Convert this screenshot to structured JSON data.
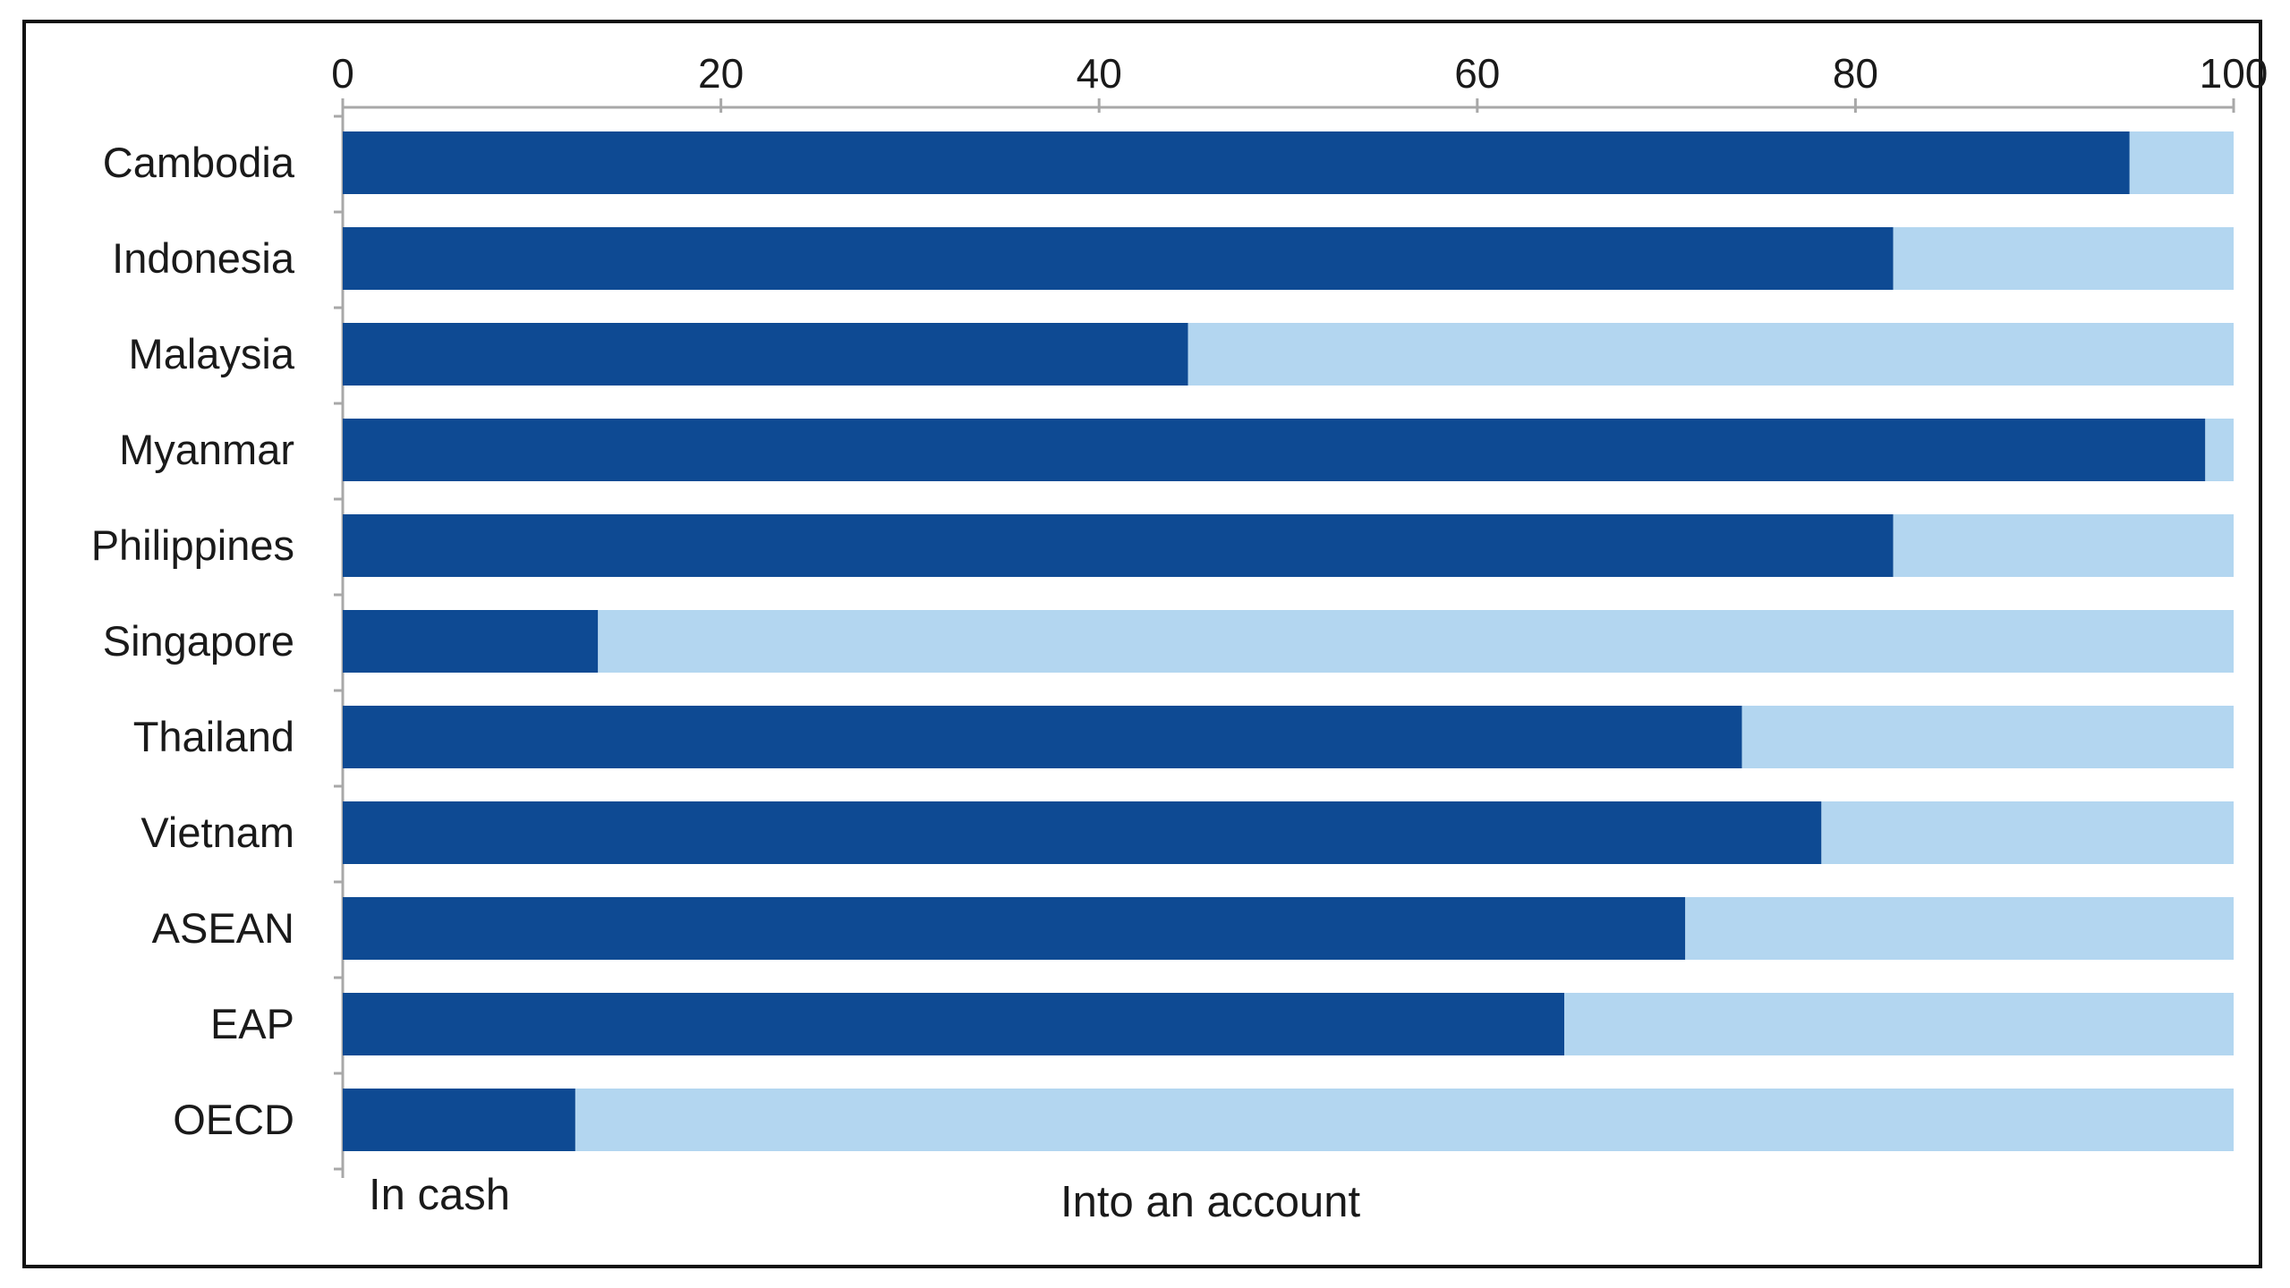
{
  "chart_data": {
    "type": "bar",
    "orientation": "horizontal",
    "stacked": true,
    "categories": [
      "Cambodia",
      "Indonesia",
      "Malaysia",
      "Myanmar",
      "Philippines",
      "Singapore",
      "Thailand",
      "Vietnam",
      "ASEAN",
      "EAP",
      "OECD"
    ],
    "series": [
      {
        "name": "In cash",
        "color": "#0e4a93",
        "values": [
          94.5,
          82,
          44.7,
          98.5,
          82,
          13.5,
          74,
          78.2,
          71,
          64.6,
          12.3
        ]
      },
      {
        "name": "Into an account",
        "color": "#b3d6f0",
        "values": [
          5.5,
          18,
          55.3,
          1.5,
          18,
          86.5,
          26,
          21.8,
          29,
          35.4,
          87.7
        ]
      }
    ],
    "xlim": [
      0,
      100
    ],
    "xticks": [
      "0",
      "20",
      "40",
      "60",
      "80",
      "100"
    ],
    "xaxis_position": "top",
    "grid": false,
    "legend_position": "bottom",
    "title": "",
    "xlabel": "",
    "ylabel": ""
  }
}
